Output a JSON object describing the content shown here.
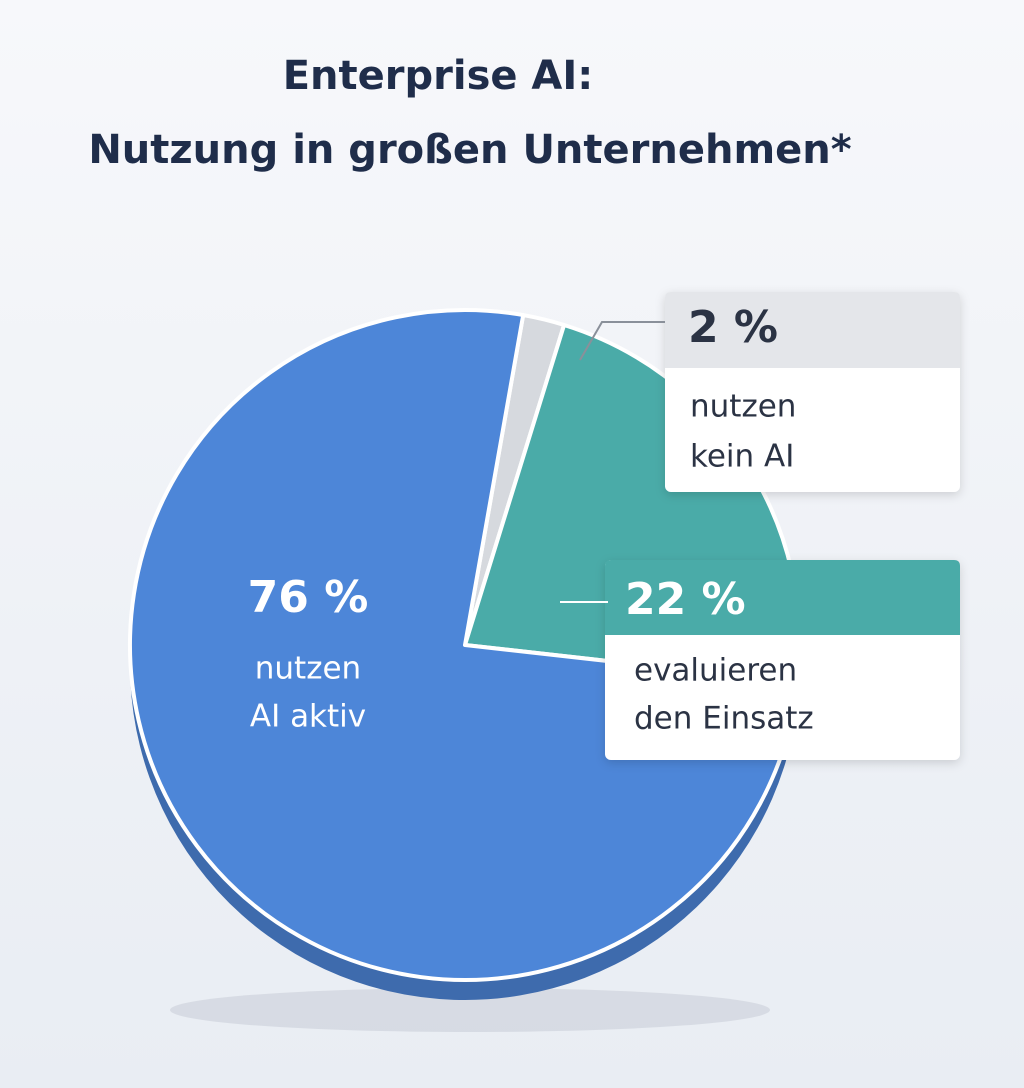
{
  "chart_data": {
    "type": "pie",
    "title": [
      "Enterprise AI:",
      "Nutzung in großen Unternehmen*"
    ],
    "categories": [
      [
        "nutzen",
        "AI aktiv"
      ],
      [
        "evaluieren",
        "den Einsatz"
      ],
      [
        "nutzen",
        "kein AI"
      ]
    ],
    "values": [
      76,
      22,
      2
    ],
    "value_labels": [
      "76 %",
      "22 %",
      "2 %"
    ],
    "colors": [
      "#4d86d8",
      "#4aaba8",
      "#d6d9de"
    ]
  }
}
